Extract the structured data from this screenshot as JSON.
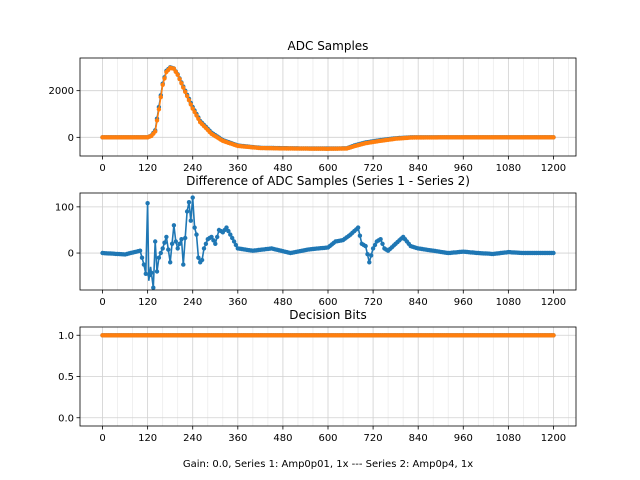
{
  "figure": {
    "xlabel": "Gain: 0.0, Series 1: Amp0p01, 1x --- Series 2: Amp0p4, 1x"
  },
  "colors": {
    "series1": "#1f77b4",
    "series2": "#ff7f0e",
    "grid": "#d0d0d0"
  },
  "chart_data": [
    {
      "type": "line",
      "title": "ADC Samples",
      "xlim": [
        -60,
        1260
      ],
      "ylim": [
        -800,
        3400
      ],
      "xticks": [
        0,
        120,
        240,
        360,
        480,
        600,
        720,
        840,
        960,
        1080,
        1200
      ],
      "yticks": [
        0,
        2000
      ],
      "grid": true,
      "series": [
        {
          "color": "#1f77b4",
          "points": [
            [
              0,
              0
            ],
            [
              120,
              0
            ],
            [
              130,
              80
            ],
            [
              140,
              300
            ],
            [
              150,
              1300
            ],
            [
              160,
              2300
            ],
            [
              170,
              2850
            ],
            [
              180,
              3000
            ],
            [
              190,
              2950
            ],
            [
              200,
              2700
            ],
            [
              220,
              2000
            ],
            [
              240,
              1300
            ],
            [
              260,
              700
            ],
            [
              290,
              200
            ],
            [
              320,
              -120
            ],
            [
              360,
              -350
            ],
            [
              420,
              -450
            ],
            [
              500,
              -470
            ],
            [
              600,
              -480
            ],
            [
              650,
              -470
            ],
            [
              670,
              -350
            ],
            [
              700,
              -220
            ],
            [
              740,
              -120
            ],
            [
              780,
              -40
            ],
            [
              820,
              0
            ],
            [
              900,
              0
            ],
            [
              1000,
              0
            ],
            [
              1100,
              0
            ],
            [
              1200,
              0
            ]
          ]
        },
        {
          "color": "#ff7f0e",
          "points": [
            [
              0,
              0
            ],
            [
              120,
              0
            ],
            [
              130,
              60
            ],
            [
              140,
              250
            ],
            [
              150,
              1200
            ],
            [
              160,
              2250
            ],
            [
              170,
              2800
            ],
            [
              180,
              2980
            ],
            [
              190,
              2940
            ],
            [
              200,
              2680
            ],
            [
              220,
              1950
            ],
            [
              240,
              1230
            ],
            [
              260,
              650
            ],
            [
              290,
              150
            ],
            [
              320,
              -150
            ],
            [
              360,
              -370
            ],
            [
              420,
              -460
            ],
            [
              500,
              -480
            ],
            [
              600,
              -490
            ],
            [
              650,
              -480
            ],
            [
              670,
              -380
            ],
            [
              700,
              -250
            ],
            [
              740,
              -150
            ],
            [
              780,
              -60
            ],
            [
              820,
              -10
            ],
            [
              900,
              0
            ],
            [
              1000,
              0
            ],
            [
              1100,
              0
            ],
            [
              1200,
              0
            ]
          ]
        }
      ]
    },
    {
      "type": "line",
      "title": "Difference of ADC Samples (Series 1 - Series 2)",
      "xlim": [
        -60,
        1260
      ],
      "ylim": [
        -80,
        130
      ],
      "xticks": [
        0,
        120,
        240,
        360,
        480,
        600,
        720,
        840,
        960,
        1080,
        1200
      ],
      "yticks": [
        0,
        100
      ],
      "grid": true,
      "series": [
        {
          "color": "#1f77b4",
          "points": [
            [
              0,
              0
            ],
            [
              60,
              -3
            ],
            [
              100,
              5
            ],
            [
              110,
              -25
            ],
            [
              115,
              -45
            ],
            [
              120,
              108
            ],
            [
              123,
              -60
            ],
            [
              128,
              -30
            ],
            [
              135,
              -75
            ],
            [
              140,
              25
            ],
            [
              145,
              -40
            ],
            [
              150,
              -10
            ],
            [
              160,
              10
            ],
            [
              170,
              35
            ],
            [
              180,
              -20
            ],
            [
              190,
              60
            ],
            [
              195,
              25
            ],
            [
              200,
              10
            ],
            [
              210,
              30
            ],
            [
              215,
              -25
            ],
            [
              225,
              90
            ],
            [
              230,
              110
            ],
            [
              235,
              70
            ],
            [
              240,
              120
            ],
            [
              245,
              55
            ],
            [
              250,
              40
            ],
            [
              255,
              -10
            ],
            [
              260,
              -20
            ],
            [
              265,
              -15
            ],
            [
              270,
              10
            ],
            [
              280,
              30
            ],
            [
              290,
              35
            ],
            [
              300,
              20
            ],
            [
              310,
              50
            ],
            [
              320,
              45
            ],
            [
              330,
              55
            ],
            [
              340,
              40
            ],
            [
              350,
              25
            ],
            [
              360,
              10
            ],
            [
              400,
              5
            ],
            [
              450,
              10
            ],
            [
              500,
              0
            ],
            [
              550,
              8
            ],
            [
              600,
              12
            ],
            [
              620,
              25
            ],
            [
              640,
              28
            ],
            [
              660,
              40
            ],
            [
              680,
              55
            ],
            [
              690,
              20
            ],
            [
              700,
              15
            ],
            [
              710,
              -20
            ],
            [
              720,
              10
            ],
            [
              730,
              25
            ],
            [
              740,
              30
            ],
            [
              750,
              10
            ],
            [
              760,
              5
            ],
            [
              780,
              20
            ],
            [
              800,
              35
            ],
            [
              820,
              15
            ],
            [
              840,
              10
            ],
            [
              880,
              5
            ],
            [
              920,
              0
            ],
            [
              960,
              3
            ],
            [
              1000,
              0
            ],
            [
              1040,
              -2
            ],
            [
              1080,
              2
            ],
            [
              1120,
              0
            ],
            [
              1160,
              0
            ],
            [
              1200,
              0
            ]
          ]
        }
      ]
    },
    {
      "type": "line",
      "title": "Decision Bits",
      "xlim": [
        -60,
        1260
      ],
      "ylim": [
        -0.1,
        1.1
      ],
      "xticks": [
        0,
        120,
        240,
        360,
        480,
        600,
        720,
        840,
        960,
        1080,
        1200
      ],
      "yticks": [
        0.0,
        0.5,
        1.0
      ],
      "ytick_labels": [
        "0.0",
        "0.5",
        "1.0"
      ],
      "grid": true,
      "series": [
        {
          "color": "#1f77b4",
          "points": [
            [
              0,
              1
            ],
            [
              1200,
              1
            ]
          ]
        },
        {
          "color": "#ff7f0e",
          "points": [
            [
              0,
              1
            ],
            [
              1200,
              1
            ]
          ]
        }
      ]
    }
  ]
}
